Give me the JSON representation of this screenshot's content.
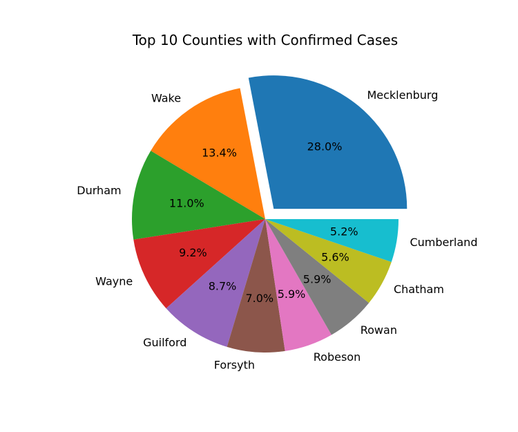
{
  "chart_data": {
    "type": "pie",
    "title": "Top 10 Counties with Confirmed Cases",
    "categories": [
      "Mecklenburg",
      "Wake",
      "Durham",
      "Wayne",
      "Guilford",
      "Forsyth",
      "Robeson",
      "Rowan",
      "Chatham",
      "Cumberland"
    ],
    "values": [
      28.0,
      13.4,
      11.0,
      9.2,
      8.7,
      7.0,
      5.9,
      5.9,
      5.6,
      5.2
    ],
    "value_labels": [
      "28.0%",
      "13.4%",
      "11.0%",
      "9.2%",
      "8.7%",
      "7.0%",
      "5.9%",
      "5.9%",
      "5.6%",
      "5.2%"
    ],
    "colors": [
      "#1f77b4",
      "#ff7f0e",
      "#2ca02c",
      "#d62728",
      "#9467bd",
      "#8c564b",
      "#e377c2",
      "#7f7f7f",
      "#bcbd22",
      "#17becf"
    ],
    "exploded": [
      "Mecklenburg"
    ],
    "start_angle": "0 degrees (3 o'clock), counterclockwise",
    "legend": "none"
  }
}
